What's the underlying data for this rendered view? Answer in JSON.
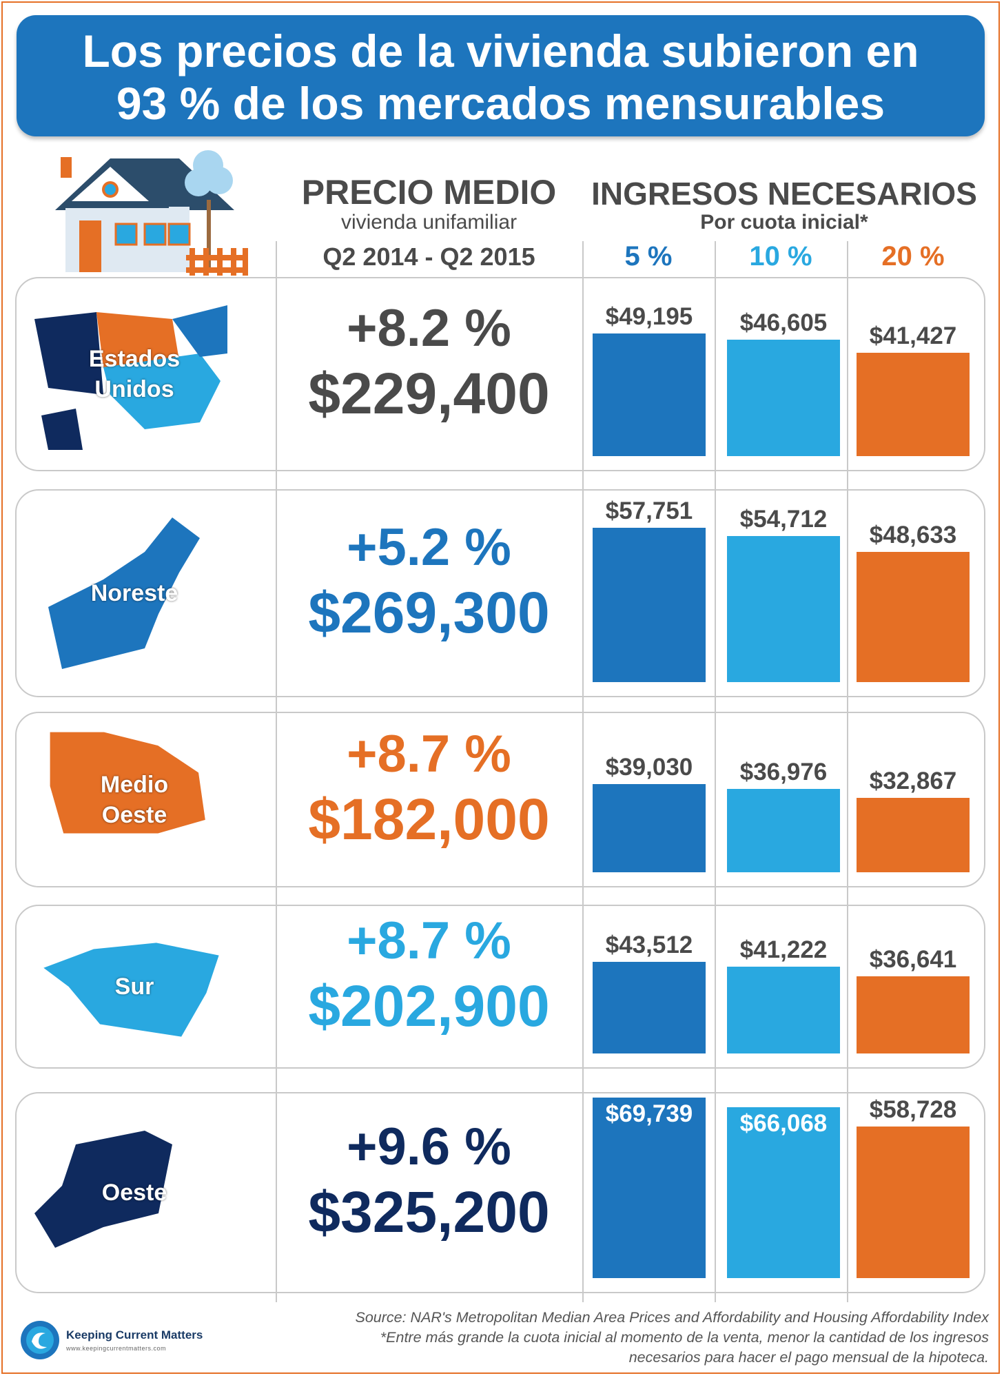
{
  "title": {
    "line1": "Los precios de la vivienda subieron en",
    "line2": "93 % de los mercados mensurables"
  },
  "header": {
    "price_title": "PRECIO MEDIO",
    "price_subtitle": "vivienda unifamiliar",
    "price_period": "Q2 2014 - Q2 2015",
    "income_title": "INGRESOS NECESARIOS",
    "income_subtitle": "Por cuota inicial*",
    "col_5": "5 %",
    "col_10": "10 %",
    "col_20": "20 %"
  },
  "colors": {
    "orange": "#e56f25",
    "blue": "#1d75bd",
    "light_blue": "#29a8e0",
    "navy": "#0f2a5e",
    "gray": "#4a4a4a"
  },
  "chart_data": {
    "type": "bar",
    "categories": [
      "5 %",
      "10 %",
      "20 %"
    ],
    "regions": [
      {
        "map_label": [
          "Estados",
          "Unidos"
        ],
        "change": "+8.2 %",
        "price": "$229,400",
        "text_color": "#4a4a4a",
        "values": [
          49195,
          46605,
          41427
        ],
        "labels": [
          "$49,195",
          "$46,605",
          "$41,427"
        ]
      },
      {
        "map_label": [
          "Noreste"
        ],
        "change": "+5.2 %",
        "price": "$269,300",
        "text_color": "#1d75bd",
        "values": [
          57751,
          54712,
          48633
        ],
        "labels": [
          "$57,751",
          "$54,712",
          "$48,633"
        ]
      },
      {
        "map_label": [
          "Medio",
          "Oeste"
        ],
        "change": "+8.7 %",
        "price": "$182,000",
        "text_color": "#e56f25",
        "values": [
          39030,
          36976,
          32867
        ],
        "labels": [
          "$39,030",
          "$36,976",
          "$32,867"
        ]
      },
      {
        "map_label": [
          "Sur"
        ],
        "change": "+8.7 %",
        "price": "$202,900",
        "text_color": "#29a8e0",
        "values": [
          43512,
          41222,
          36641
        ],
        "labels": [
          "$43,512",
          "$41,222",
          "$36,641"
        ]
      },
      {
        "map_label": [
          "Oeste"
        ],
        "change": "+9.6 %",
        "price": "$325,200",
        "text_color": "#0f2a5e",
        "values": [
          69739,
          66068,
          58728
        ],
        "labels": [
          "$69,739",
          "$66,068",
          "$58,728"
        ]
      }
    ]
  },
  "footer": {
    "source": "Source: NAR's Metropolitan Median Area Prices and Affordability and Housing Affordability Index",
    "note_line1": "*Entre más grande la cuota inicial al momento de la venta, menor la cantidad de los ingresos",
    "note_line2": "necesarios para hacer el pago mensual de la hipoteca.",
    "logo_name": "Keeping Current Matters",
    "logo_url": "www.keepingcurrentmatters.com"
  }
}
